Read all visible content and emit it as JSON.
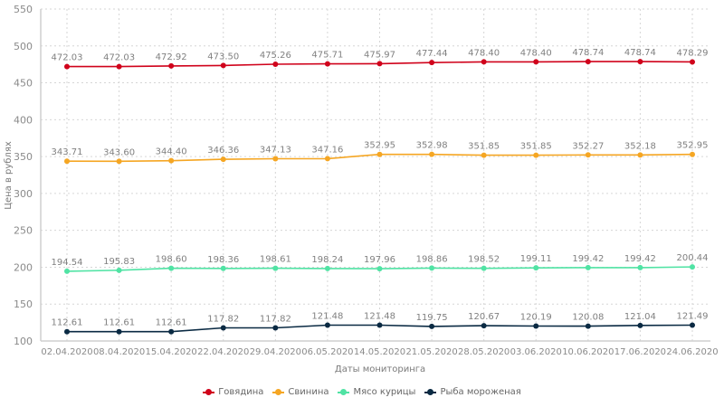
{
  "chart_data": {
    "type": "line",
    "title": "",
    "xlabel": "Даты мониторинга",
    "ylabel": "Цена в рублях",
    "ylim": [
      100,
      550
    ],
    "yticks": [
      100,
      150,
      200,
      250,
      300,
      350,
      400,
      450,
      500,
      550
    ],
    "grid": true,
    "legend_position": "bottom-center",
    "categories": [
      "02.04.2020",
      "08.04.2020",
      "15.04.2020",
      "22.04.2020",
      "29.04.2020",
      "06.05.2020",
      "14.05.2020",
      "21.05.2020",
      "28.05.2020",
      "03.06.2020",
      "10.06.2020",
      "17.06.2020",
      "24.06.2020"
    ],
    "series": [
      {
        "name": "Говядина",
        "color": "#d0021b",
        "values": [
          472.03,
          472.03,
          472.92,
          473.5,
          475.26,
          475.71,
          475.97,
          477.44,
          478.4,
          478.4,
          478.74,
          478.74,
          478.29
        ],
        "labels": [
          "472.03",
          "472.03",
          "472.92",
          "473.50",
          "475.26",
          "475.71",
          "475.97",
          "477.44",
          "478.40",
          "478.40",
          "478.74",
          "478.74",
          "478.29"
        ]
      },
      {
        "name": "Свинина",
        "color": "#f5a623",
        "values": [
          343.71,
          343.6,
          344.4,
          346.36,
          347.13,
          347.16,
          352.95,
          352.98,
          351.85,
          351.85,
          352.27,
          352.18,
          352.95
        ],
        "labels": [
          "343.71",
          "343.60",
          "344.40",
          "346.36",
          "347.13",
          "347.16",
          "352.95",
          "352.98",
          "351.85",
          "351.85",
          "352.27",
          "352.18",
          "352.95"
        ]
      },
      {
        "name": "Мясо курицы",
        "color": "#50e3a4",
        "values": [
          194.54,
          195.83,
          198.6,
          198.36,
          198.61,
          198.24,
          197.96,
          198.86,
          198.52,
          199.11,
          199.42,
          199.42,
          200.44
        ],
        "labels": [
          "194.54",
          "195.83",
          "198.60",
          "198.36",
          "198.61",
          "198.24",
          "197.96",
          "198.86",
          "198.52",
          "199.11",
          "199.42",
          "199.42",
          "200.44"
        ]
      },
      {
        "name": "Рыба мороженая",
        "color": "#0a2a43",
        "values": [
          112.61,
          112.61,
          112.61,
          117.82,
          117.82,
          121.48,
          121.48,
          119.75,
          120.67,
          120.19,
          120.08,
          121.04,
          121.49
        ],
        "labels": [
          "112.61",
          "112.61",
          "112.61",
          "117.82",
          "117.82",
          "121.48",
          "121.48",
          "119.75",
          "120.67",
          "120.19",
          "120.08",
          "121.04",
          "121.49"
        ]
      }
    ]
  }
}
